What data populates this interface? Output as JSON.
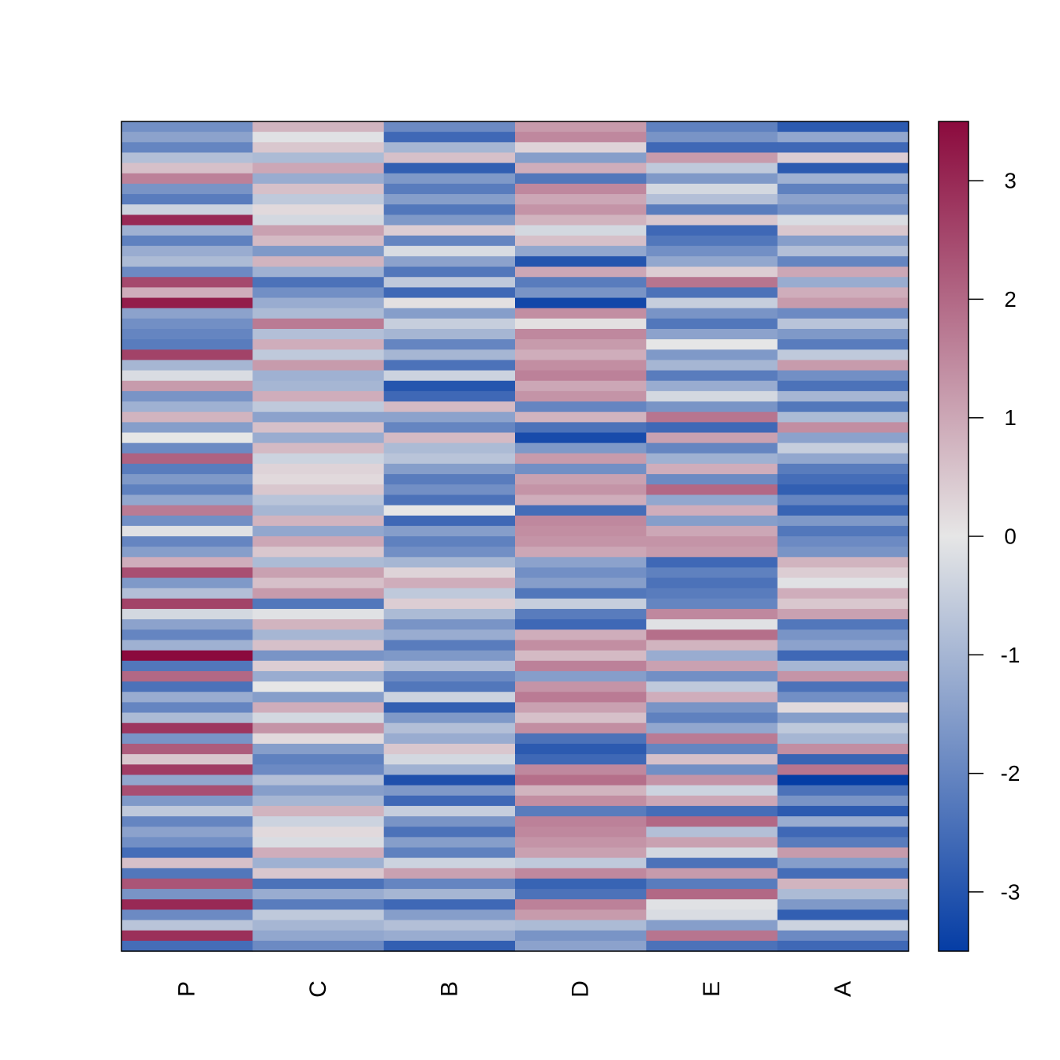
{
  "chart_data": {
    "type": "heatmap",
    "columns": [
      "P",
      "C",
      "B",
      "D",
      "E",
      "A"
    ],
    "value_range": [
      -3.5,
      3.5
    ],
    "colorbar": {
      "ticks": [
        3,
        2,
        1,
        0,
        -1,
        -2,
        -3
      ],
      "tick_labels": [
        "3",
        "2",
        "1",
        "0",
        "-1",
        "-2",
        "-3"
      ],
      "low_color": "#053da5",
      "mid_color": "#e6e6e6",
      "high_color": "#8b0a3d"
    },
    "row_count": 80,
    "values": [
      [
        -1.8,
        0.8,
        -1.9,
        1.2,
        -2.1,
        -2.9
      ],
      [
        -1.4,
        -0.1,
        -2.6,
        1.5,
        -1.7,
        -1.3
      ],
      [
        -2.0,
        0.5,
        -1.0,
        0.3,
        -2.6,
        -2.6
      ],
      [
        -0.8,
        -0.9,
        0.6,
        -1.5,
        1.2,
        0.4
      ],
      [
        0.6,
        1.0,
        -2.8,
        0.9,
        -0.6,
        -2.9
      ],
      [
        1.6,
        -1.2,
        -1.6,
        -2.3,
        -1.6,
        -1.1
      ],
      [
        -1.7,
        0.6,
        -2.2,
        1.5,
        -0.3,
        -2.1
      ],
      [
        -2.2,
        -0.6,
        -1.5,
        1.0,
        -0.8,
        -1.4
      ],
      [
        -0.4,
        0.2,
        -2.3,
        1.3,
        -2.2,
        -1.8
      ],
      [
        3.0,
        -0.3,
        -1.6,
        0.8,
        0.5,
        -0.2
      ],
      [
        -1.1,
        1.1,
        0.4,
        -0.3,
        -2.6,
        0.5
      ],
      [
        -2.1,
        0.7,
        -2.0,
        0.6,
        -2.3,
        -1.5
      ],
      [
        -1.2,
        -1.6,
        -0.2,
        -1.3,
        -1.8,
        -0.8
      ],
      [
        -0.9,
        0.8,
        -1.4,
        -3.0,
        -1.3,
        -2.0
      ],
      [
        -1.9,
        -1.1,
        -2.3,
        1.0,
        0.4,
        1.0
      ],
      [
        2.5,
        -2.4,
        -0.6,
        -2.2,
        1.8,
        -1.2
      ],
      [
        0.9,
        -1.8,
        -2.6,
        -1.7,
        -2.4,
        0.9
      ],
      [
        3.2,
        -1.2,
        0.1,
        -3.3,
        -0.5,
        1.2
      ],
      [
        -1.4,
        -0.9,
        -1.5,
        1.4,
        -1.7,
        -1.9
      ],
      [
        -1.8,
        1.7,
        -0.5,
        0.1,
        -2.3,
        -0.7
      ],
      [
        -2.0,
        -0.8,
        -1.0,
        1.5,
        -1.4,
        -1.6
      ],
      [
        -2.2,
        0.9,
        -2.0,
        1.2,
        0.0,
        -2.2
      ],
      [
        2.6,
        -0.6,
        -1.0,
        0.9,
        -1.6,
        -0.6
      ],
      [
        -1.0,
        1.2,
        -2.4,
        1.4,
        -1.0,
        1.2
      ],
      [
        -0.2,
        -1.1,
        -0.4,
        1.6,
        -2.2,
        -1.8
      ],
      [
        1.2,
        -1.0,
        -3.0,
        1.0,
        -1.2,
        -2.4
      ],
      [
        -1.7,
        0.9,
        -2.6,
        1.3,
        -0.3,
        -1.0
      ],
      [
        -1.1,
        -0.6,
        0.7,
        -2.0,
        -1.7,
        -2.3
      ],
      [
        0.8,
        -1.4,
        -1.4,
        0.8,
        1.8,
        -0.9
      ],
      [
        -1.5,
        0.6,
        -2.0,
        -2.4,
        -2.6,
        1.4
      ],
      [
        0.0,
        -1.2,
        0.7,
        -3.2,
        1.1,
        -1.4
      ],
      [
        -1.9,
        0.7,
        -0.9,
        -1.6,
        -2.0,
        -0.5
      ],
      [
        2.1,
        -0.4,
        -0.7,
        1.2,
        -1.1,
        -1.3
      ],
      [
        -2.2,
        0.3,
        -1.5,
        -1.8,
        0.9,
        -2.2
      ],
      [
        -1.6,
        0.2,
        -2.2,
        1.1,
        -1.9,
        -2.5
      ],
      [
        -2.1,
        0.5,
        -1.8,
        1.3,
        2.0,
        -2.8
      ],
      [
        -1.3,
        -0.7,
        -2.4,
        0.9,
        -1.3,
        -2.0
      ],
      [
        1.7,
        -1.0,
        0.0,
        -2.5,
        0.9,
        -2.7
      ],
      [
        -1.8,
        0.8,
        -2.6,
        1.5,
        -1.5,
        -1.6
      ],
      [
        -0.1,
        -1.3,
        -1.5,
        1.4,
        1.0,
        -2.3
      ],
      [
        -2.0,
        1.0,
        -2.1,
        1.3,
        1.3,
        -1.9
      ],
      [
        -1.5,
        0.5,
        -1.8,
        1.0,
        1.2,
        -1.7
      ],
      [
        0.9,
        -0.9,
        -1.0,
        -1.4,
        -2.6,
        0.8
      ],
      [
        2.4,
        1.1,
        0.3,
        -1.8,
        -2.1,
        0.4
      ],
      [
        -1.6,
        0.6,
        0.9,
        -1.5,
        -2.4,
        -0.1
      ],
      [
        -0.8,
        1.2,
        -0.6,
        -2.3,
        -2.2,
        0.9
      ],
      [
        2.6,
        -2.3,
        0.4,
        -0.5,
        -2.0,
        0.5
      ],
      [
        -0.3,
        -0.1,
        -0.9,
        -2.2,
        1.5,
        1.1
      ],
      [
        -1.4,
        0.8,
        -1.7,
        -2.6,
        -0.1,
        -2.3
      ],
      [
        -2.0,
        -1.0,
        -1.2,
        0.9,
        1.9,
        -1.7
      ],
      [
        -1.1,
        0.6,
        -2.2,
        1.4,
        0.8,
        -1.4
      ],
      [
        3.5,
        -1.7,
        -1.6,
        0.7,
        -1.2,
        -2.6
      ],
      [
        -2.3,
        0.4,
        -0.8,
        1.6,
        1.1,
        -1.0
      ],
      [
        2.0,
        -1.2,
        -1.9,
        -1.5,
        -1.8,
        1.3
      ],
      [
        -2.4,
        0.0,
        -2.3,
        1.3,
        -0.6,
        -2.4
      ],
      [
        -1.2,
        -1.5,
        -0.4,
        1.7,
        0.9,
        -1.8
      ],
      [
        -2.0,
        0.9,
        -2.8,
        1.1,
        -1.7,
        0.2
      ],
      [
        -0.9,
        -0.3,
        -1.6,
        0.6,
        -2.1,
        -1.5
      ],
      [
        2.8,
        1.3,
        -0.8,
        1.4,
        -1.3,
        -0.6
      ],
      [
        -1.7,
        0.2,
        -1.2,
        -2.4,
        1.7,
        -1.0
      ],
      [
        2.2,
        -1.5,
        0.5,
        -2.9,
        -2.0,
        1.4
      ],
      [
        0.5,
        -2.1,
        -0.3,
        -2.6,
        0.6,
        -2.7
      ],
      [
        2.7,
        -1.9,
        -1.1,
        1.5,
        -1.8,
        1.8
      ],
      [
        -1.3,
        -0.8,
        -3.1,
        1.9,
        1.3,
        -3.5
      ],
      [
        2.4,
        -1.5,
        -1.6,
        0.8,
        -0.4,
        -2.4
      ],
      [
        -1.6,
        -1.0,
        -2.6,
        1.4,
        1.0,
        -1.7
      ],
      [
        -0.6,
        0.8,
        -0.5,
        -2.2,
        -2.5,
        -2.9
      ],
      [
        -2.0,
        -0.4,
        -1.7,
        1.6,
        2.0,
        -1.2
      ],
      [
        -1.4,
        0.2,
        -2.4,
        1.5,
        -0.8,
        -2.6
      ],
      [
        -1.8,
        -0.2,
        -1.5,
        1.3,
        1.1,
        -2.2
      ],
      [
        -2.5,
        0.9,
        -2.1,
        1.1,
        -0.3,
        1.2
      ],
      [
        0.6,
        -1.1,
        -0.4,
        -0.6,
        -2.4,
        -1.5
      ],
      [
        -2.3,
        0.5,
        1.1,
        1.5,
        1.2,
        -2.5
      ],
      [
        2.3,
        -2.4,
        -2.0,
        -2.7,
        -2.2,
        0.8
      ],
      [
        -1.7,
        -1.2,
        -1.0,
        -2.4,
        2.0,
        -0.9
      ],
      [
        3.0,
        -2.2,
        -2.6,
        1.6,
        -0.1,
        -1.6
      ],
      [
        -1.9,
        -0.6,
        -1.5,
        1.2,
        -0.2,
        -2.8
      ],
      [
        -0.7,
        -1.0,
        -0.8,
        -0.9,
        -1.5,
        -0.4
      ],
      [
        2.9,
        -1.3,
        -1.2,
        -1.7,
        1.8,
        -1.9
      ],
      [
        -2.5,
        -1.9,
        -2.8,
        -1.4,
        -2.4,
        -2.6
      ]
    ]
  }
}
